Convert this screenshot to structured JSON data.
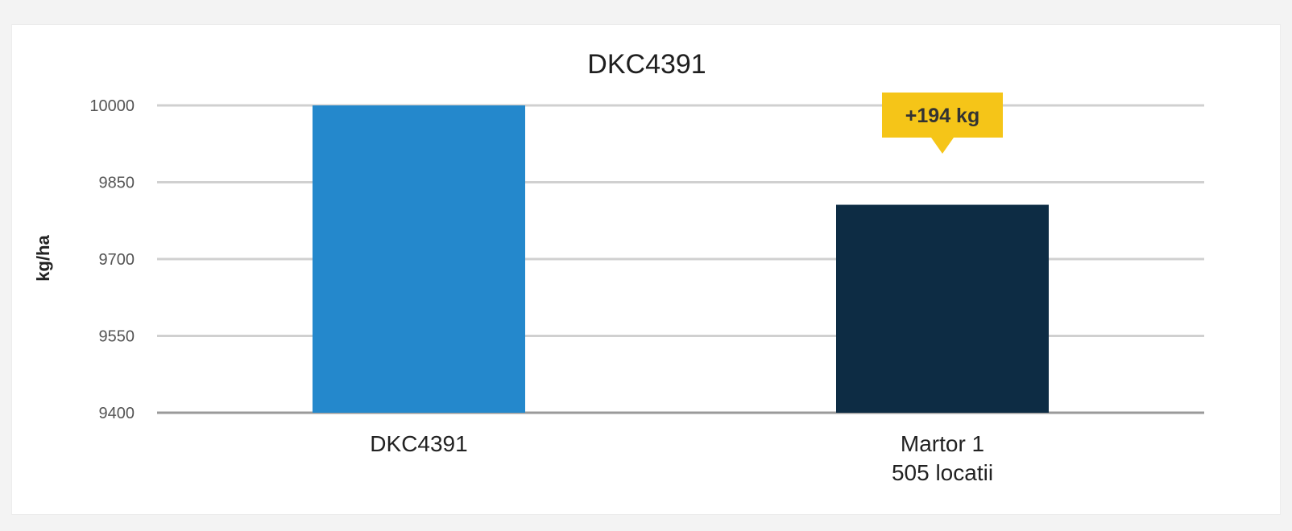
{
  "chart_data": {
    "type": "bar",
    "title": "DKC4391",
    "ylabel": "kg/ha",
    "xlabel": "",
    "ylim": [
      9400,
      10000
    ],
    "yticks": [
      9400,
      9550,
      9700,
      9850,
      10000
    ],
    "ytick_labels": [
      "9400",
      "9550",
      "9700",
      "9850",
      "10000"
    ],
    "categories": [
      [
        "DKC4391"
      ],
      [
        "Martor 1",
        "505 locatii"
      ]
    ],
    "values": [
      10000,
      9806
    ],
    "bar_colors": [
      "#2488cc",
      "#0d2c44"
    ],
    "grid": true,
    "legend": "none",
    "annotation": {
      "category_index": 1,
      "text": "+194 kg",
      "color": "#f5c518"
    }
  }
}
